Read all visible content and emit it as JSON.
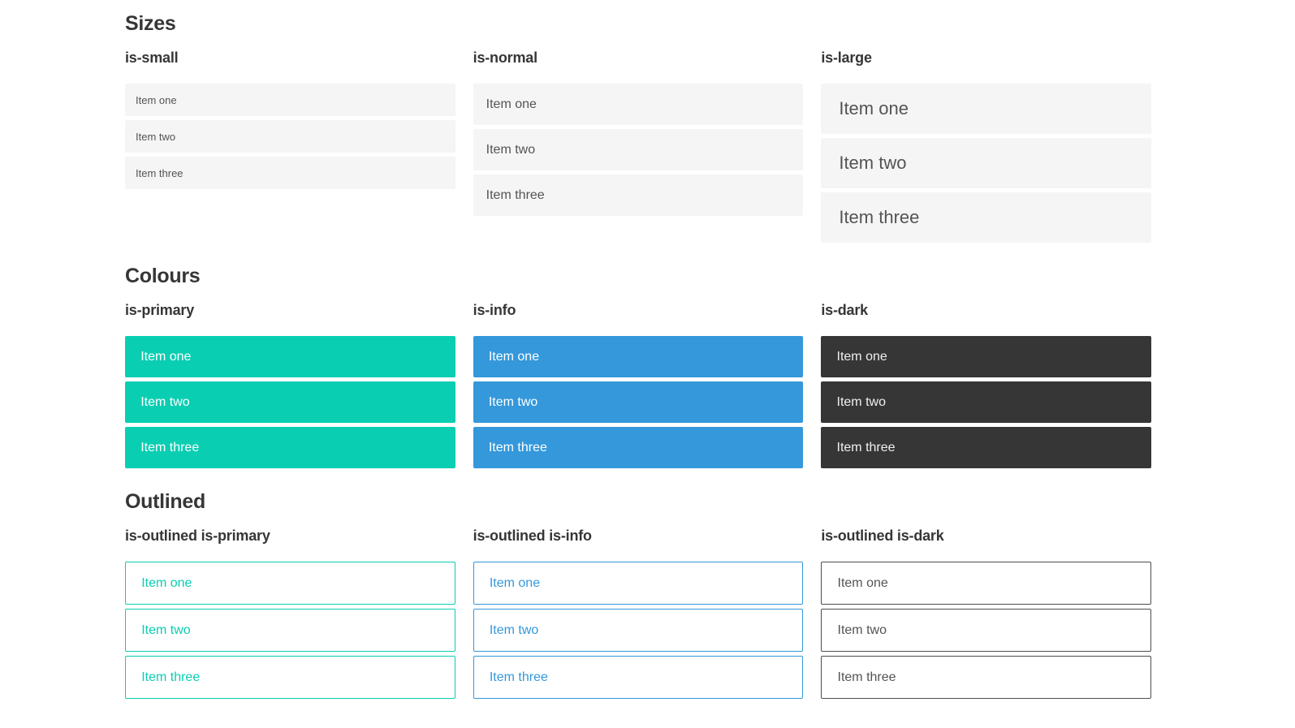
{
  "colors": {
    "primary": "#0aceb2",
    "info": "#3498db",
    "dark": "#363636",
    "item-bg": "#f5f5f5",
    "item-text": "#545454",
    "heading": "#363636",
    "outlined-dark-border": "#4d4d4d"
  },
  "sections": [
    {
      "title": "Sizes",
      "groups": [
        {
          "label": "is-small",
          "items": [
            "Item one",
            "Item two",
            "Item three"
          ]
        },
        {
          "label": "is-normal",
          "items": [
            "Item one",
            "Item two",
            "Item three"
          ]
        },
        {
          "label": "is-large",
          "items": [
            "Item one",
            "Item two",
            "Item three"
          ]
        }
      ]
    },
    {
      "title": "Colours",
      "groups": [
        {
          "label": "is-primary",
          "items": [
            "Item one",
            "Item two",
            "Item three"
          ]
        },
        {
          "label": "is-info",
          "items": [
            "Item one",
            "Item two",
            "Item three"
          ]
        },
        {
          "label": "is-dark",
          "items": [
            "Item one",
            "Item two",
            "Item three"
          ]
        }
      ]
    },
    {
      "title": "Outlined",
      "groups": [
        {
          "label": "is-outlined is-primary",
          "items": [
            "Item one",
            "Item two",
            "Item three"
          ]
        },
        {
          "label": "is-outlined is-info",
          "items": [
            "Item one",
            "Item two",
            "Item three"
          ]
        },
        {
          "label": "is-outlined is-dark",
          "items": [
            "Item one",
            "Item two",
            "Item three"
          ]
        }
      ]
    }
  ]
}
